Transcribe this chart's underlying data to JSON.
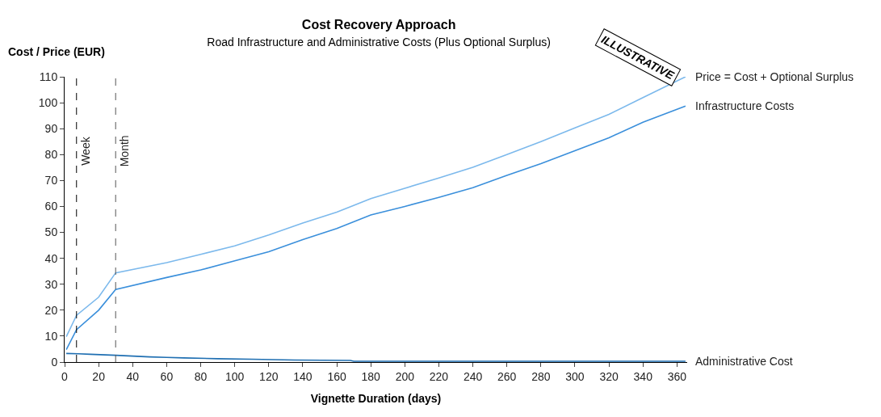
{
  "chart_data": {
    "type": "line",
    "title": "Cost Recovery Approach",
    "subtitle": "Road Infrastructure and Administrative Costs (Plus Optional Surplus)",
    "xlabel": "Vignette Duration (days)",
    "ylabel": "Cost / Price (EUR)",
    "annotations": [
      "ILLUSTRATIVE"
    ],
    "xlim": [
      0,
      366
    ],
    "xticks": [
      0,
      20,
      40,
      60,
      80,
      100,
      120,
      140,
      160,
      180,
      200,
      220,
      240,
      260,
      280,
      300,
      320,
      340,
      360
    ],
    "ylim": [
      0,
      110
    ],
    "yticks": [
      0,
      10,
      20,
      30,
      40,
      50,
      60,
      70,
      80,
      90,
      100,
      110
    ],
    "marker": "none",
    "line_style": "solid",
    "ref_lines": [
      {
        "axis": "x",
        "value": 7,
        "label": "Week",
        "color": "#000000",
        "line_style": "dashed"
      },
      {
        "axis": "x",
        "value": 30,
        "label": "Month",
        "color": "#555555",
        "line_style": "dashed"
      }
    ],
    "series": [
      {
        "name": "Price = Cost + Optional Surplus",
        "color": "#7cb9ec",
        "x": [
          1,
          7,
          20,
          30,
          60,
          80,
          100,
          120,
          140,
          160,
          180,
          200,
          220,
          240,
          260,
          280,
          300,
          320,
          340,
          365
        ],
        "values": [
          9.8,
          18,
          25,
          34.4,
          38.3,
          41.5,
          44.8,
          49,
          53.6,
          57.8,
          63,
          67,
          71,
          75.1,
          80,
          85,
          90.3,
          95.5,
          102,
          110
        ]
      },
      {
        "name": "Infrastructure Costs",
        "color": "#3a8fdb",
        "x": [
          1,
          7,
          20,
          30,
          60,
          80,
          100,
          120,
          140,
          160,
          180,
          200,
          220,
          240,
          260,
          280,
          300,
          320,
          340,
          365
        ],
        "values": [
          4.8,
          12.5,
          20,
          28,
          32.6,
          35.5,
          39,
          42.5,
          47.2,
          51.5,
          56.7,
          60,
          63.5,
          67.2,
          72,
          76.5,
          81.5,
          86.5,
          92.5,
          98.7
        ]
      },
      {
        "name": "Administrative Cost",
        "color": "#1f6fb2",
        "x": [
          1,
          8,
          15,
          30,
          40,
          50,
          60,
          70,
          90,
          110,
          135,
          168,
          170,
          365
        ],
        "values": [
          3.3,
          3.2,
          3.0,
          2.6,
          2.3,
          2.0,
          1.8,
          1.6,
          1.3,
          1.1,
          0.8,
          0.6,
          0.3,
          0.3
        ]
      }
    ]
  }
}
